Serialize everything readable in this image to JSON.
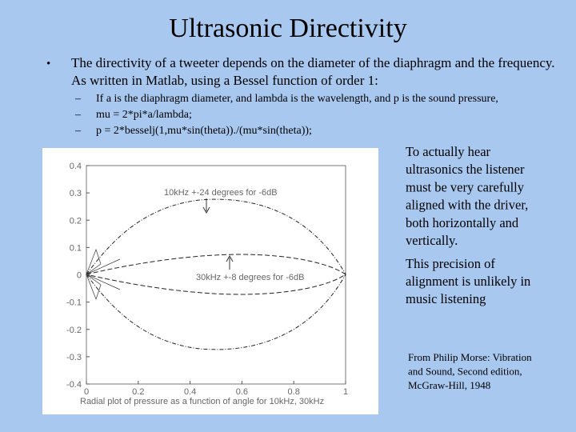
{
  "title": "Ultrasonic Directivity",
  "bullet": {
    "lines": [
      "The directivity of a tweeter depends on the diameter of the diaphragm and the frequency.",
      "As written in Matlab, using a Bessel function of order 1:"
    ],
    "subitems": [
      "If a is the diaphragm diameter, and lambda is the wavelength, and p is the sound pressure,",
      "mu = 2*pi*a/lambda;",
      "p = 2*besselj(1,mu*sin(theta))./(mu*sin(theta));"
    ]
  },
  "figure": {
    "yticks": [
      "0.4",
      "0.3",
      "0.2",
      "0.1",
      "0",
      "-0.1",
      "-0.2",
      "-0.3",
      "-0.4"
    ],
    "xticks": [
      "0",
      "0.2",
      "0.4",
      "0.6",
      "0.8",
      "1"
    ],
    "xlabel": "Radial plot of pressure as a function of angle for 10kHz, 30kHz",
    "annotations": [
      "10kHz +-24 degrees for -6dB",
      "30kHz +-8 degrees for -6dB"
    ]
  },
  "side": {
    "para1": [
      "To actually hear",
      "ultrasonics the listener",
      "must be very carefully",
      "aligned with the driver,",
      "both horizontally and",
      "vertically."
    ],
    "para2": [
      "This precision of",
      "alignment is unlikely in",
      "music listening"
    ],
    "credit": [
      "From Philip Morse:  Vibration",
      "and Sound, Second edition,",
      "McGraw-Hill, 1948"
    ]
  }
}
